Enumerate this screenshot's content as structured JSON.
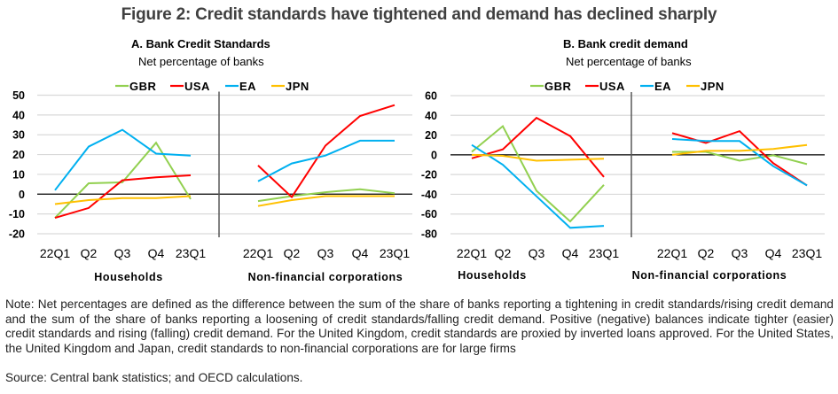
{
  "figure": {
    "title": "Figure 2: Credit standards have tightened and demand has declined sharply",
    "note": "Note: Net percentages are defined as the difference between the sum of the share of banks reporting a tightening in credit standards/rising credit demand and the sum of the share of banks reporting a loosening of credit standards/falling credit demand. Positive (negative) balances indicate tighter (easier) credit standards and rising (falling) credit demand. For the United Kingdom, credit standards are proxied by inverted loans approved. For the United States, the United Kingdom and Japan, credit standards to non-financial corporations are for large firms",
    "source": "Source: Central bank statistics; and OECD calculations."
  },
  "colors": {
    "GBR": "#92d050",
    "USA": "#ff0000",
    "EA": "#00b0f0",
    "JPN": "#ffc000",
    "grid": "#d9d9d9",
    "zero_line": "#000000",
    "separator": "#595959"
  },
  "chart_data": [
    {
      "type": "line",
      "title": "A. Bank Credit Standards",
      "subtitle": "Net percentage of banks",
      "ylabel": "Net percentage of banks",
      "ylim": [
        -20,
        50
      ],
      "yticks": [
        50,
        40,
        30,
        20,
        10,
        0,
        -10,
        -20
      ],
      "grid": true,
      "legend": [
        "GBR",
        "USA",
        "EA",
        "JPN"
      ],
      "legend_position": "top",
      "groups": [
        {
          "name": "Households",
          "categories": [
            "22Q1",
            "Q2",
            "Q3",
            "Q4",
            "23Q1"
          ],
          "series": [
            {
              "name": "GBR",
              "values": [
                -12,
                5.5,
                6,
                26,
                -2.5
              ]
            },
            {
              "name": "USA",
              "values": [
                -12,
                -7,
                7,
                8.5,
                9.5
              ]
            },
            {
              "name": "EA",
              "values": [
                2,
                24,
                32.5,
                20.5,
                19.5
              ]
            },
            {
              "name": "JPN",
              "values": [
                -5,
                -3,
                -2,
                -2,
                -1
              ]
            }
          ]
        },
        {
          "name": "Non-financial corporations",
          "categories": [
            "22Q1",
            "Q2",
            "Q3",
            "Q4",
            "23Q1"
          ],
          "series": [
            {
              "name": "GBR",
              "values": [
                -3.5,
                -1,
                1,
                2.5,
                0.5
              ]
            },
            {
              "name": "USA",
              "values": [
                14.5,
                -1.5,
                24.5,
                39.5,
                45
              ]
            },
            {
              "name": "EA",
              "values": [
                6.5,
                15.5,
                19.5,
                27,
                27
              ]
            },
            {
              "name": "JPN",
              "values": [
                -6,
                -3,
                -1,
                -1,
                -1
              ]
            }
          ]
        }
      ]
    },
    {
      "type": "line",
      "title": "B. Bank credit demand",
      "subtitle": "Net percentage of banks",
      "ylabel": "Net percentage of banks",
      "ylim": [
        -80,
        60
      ],
      "yticks": [
        60,
        40,
        20,
        0,
        -20,
        -40,
        -60,
        -80
      ],
      "grid": true,
      "legend": [
        "GBR",
        "USA",
        "EA",
        "JPN"
      ],
      "legend_position": "top",
      "groups": [
        {
          "name": "Households",
          "categories": [
            "22Q1",
            "Q2",
            "Q3",
            "Q4",
            "23Q1"
          ],
          "series": [
            {
              "name": "GBR",
              "values": [
                3,
                29,
                -36.5,
                -67.5,
                -30.5
              ]
            },
            {
              "name": "USA",
              "values": [
                -3.5,
                5.5,
                37.5,
                19,
                -22.5
              ]
            },
            {
              "name": "EA",
              "values": [
                10,
                -10,
                -42,
                -74,
                -72
              ]
            },
            {
              "name": "JPN",
              "values": [
                0,
                -1,
                -6,
                -5,
                -4
              ]
            }
          ]
        },
        {
          "name": "Non-financial corporations",
          "categories": [
            "22Q1",
            "Q2",
            "Q3",
            "Q4",
            "23Q1"
          ],
          "series": [
            {
              "name": "GBR",
              "values": [
                3,
                3,
                -6,
                -0.5,
                -9.5
              ]
            },
            {
              "name": "USA",
              "values": [
                22,
                12,
                24,
                -8.5,
                -31
              ]
            },
            {
              "name": "EA",
              "values": [
                16,
                14,
                14,
                -11.5,
                -31
              ]
            },
            {
              "name": "JPN",
              "values": [
                0,
                4,
                4,
                6,
                10
              ]
            }
          ]
        }
      ]
    }
  ]
}
